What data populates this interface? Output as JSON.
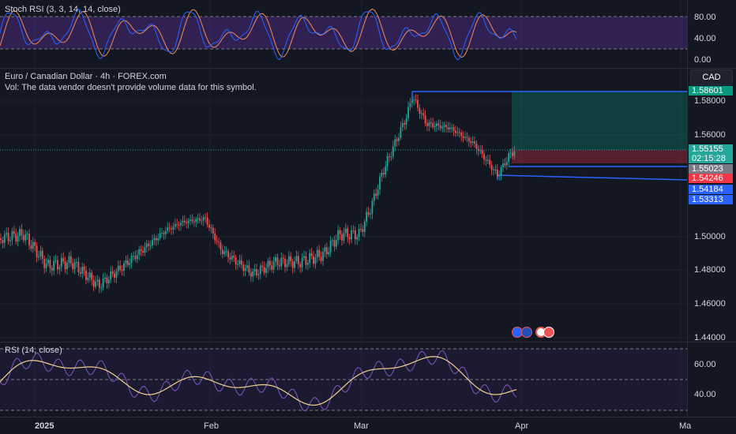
{
  "stoch": {
    "title": "Stoch RSI (3, 3, 14, 14, close)",
    "ticks": [
      "80.00",
      "40.00",
      "0.00"
    ]
  },
  "main": {
    "title": "Euro / Canadian Dollar · 4h · FOREX.com",
    "subtitle": "Vol: The data vendor doesn't provide volume data for this symbol.",
    "currency": "CAD",
    "ticks": [
      "1.58000",
      "1.56000",
      "1.50000",
      "1.48000",
      "1.46000",
      "1.44000"
    ],
    "tags": {
      "target": "1.58601",
      "price": "1.55155",
      "countdown": "02:15:28",
      "entry": "1.55023",
      "stop": "1.54246",
      "blue1": "1.54184",
      "blue2": "1.53313"
    }
  },
  "rsi": {
    "title": "RSI (14, close)",
    "ticks": [
      "60.00",
      "40.00"
    ]
  },
  "xaxis": [
    "2025",
    "Feb",
    "Mar",
    "Apr",
    "Ma"
  ],
  "colors": {
    "bg": "#131722",
    "up": "#26a69a",
    "down": "#ef5350",
    "stoch_band": "#4a2a7a",
    "blue": "#2962ff",
    "rsi_line": "#f0d090"
  }
}
